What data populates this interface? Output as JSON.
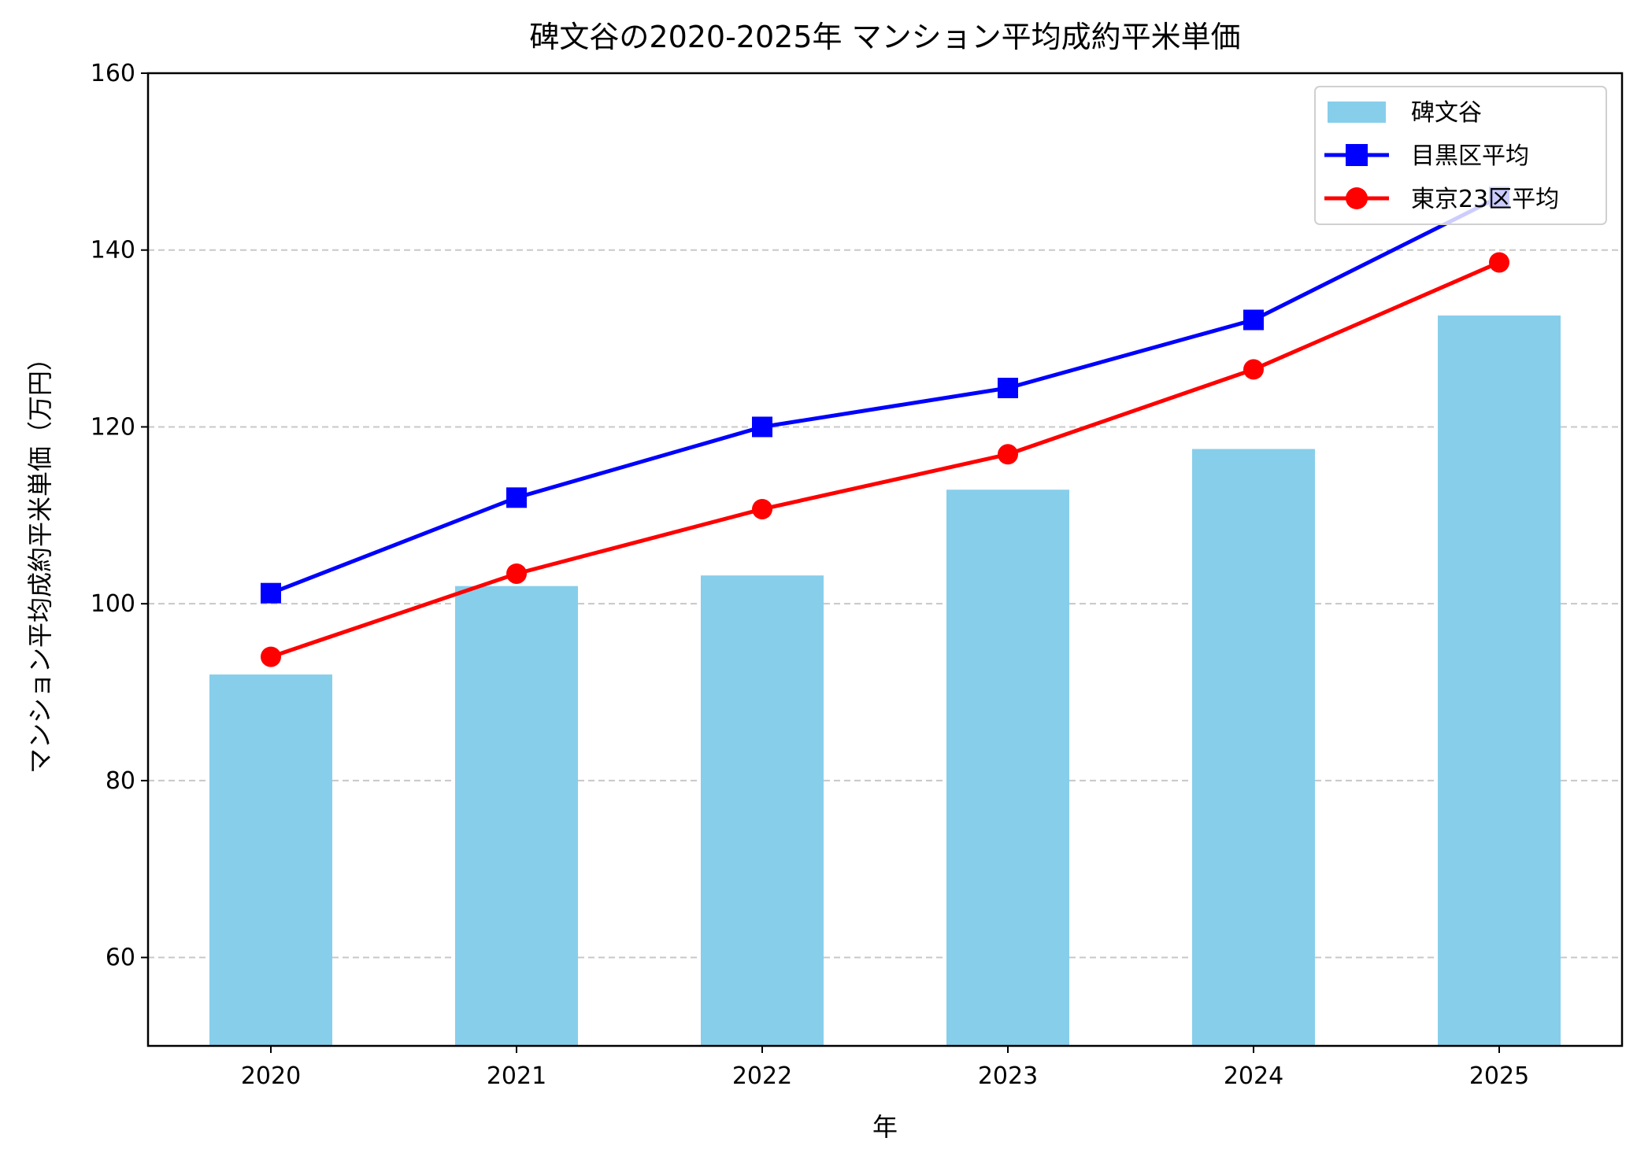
{
  "chart_data": {
    "type": "bar+line",
    "title": "碑文谷の2020-2025年 マンション平均成約平米単価",
    "xlabel": "年",
    "ylabel": "マンション平均成約平米単価（万円）",
    "categories": [
      "2020",
      "2021",
      "2022",
      "2023",
      "2024",
      "2025"
    ],
    "ylim": [
      50,
      160
    ],
    "yticks": [
      60,
      80,
      100,
      120,
      140,
      160
    ],
    "grid": "y, dashed",
    "legend_position": "top-right",
    "series": [
      {
        "name": "碑文谷",
        "kind": "bar",
        "color": "#87CEEB",
        "values": [
          92.0,
          102.0,
          103.2,
          112.9,
          117.5,
          132.6
        ]
      },
      {
        "name": "目黒区平均",
        "kind": "line",
        "marker": "square",
        "color": "#0000FF",
        "values": [
          101.2,
          112.0,
          120.0,
          124.4,
          132.1,
          146.0
        ]
      },
      {
        "name": "東京23区平均",
        "kind": "line",
        "marker": "circle",
        "color": "#FF0000",
        "values": [
          94.0,
          103.4,
          110.7,
          116.9,
          126.5,
          138.6
        ]
      }
    ]
  }
}
